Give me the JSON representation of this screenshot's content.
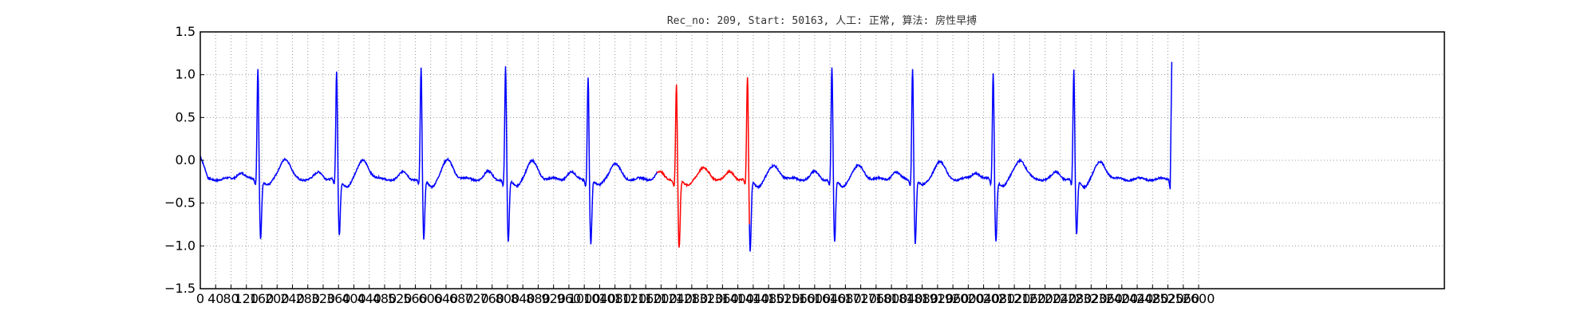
{
  "chart_data": {
    "type": "line",
    "title": "Rec_no: 209, Start: 50163, 人工: 正常, 算法: 房性早搏",
    "xlabel": "",
    "ylabel": "",
    "xlim": [
      0,
      3240
    ],
    "ylim": [
      -1.5,
      1.5
    ],
    "grid": true,
    "x_ticks": [
      0,
      40,
      80,
      120,
      160,
      200,
      240,
      280,
      320,
      360,
      400,
      440,
      480,
      520,
      560,
      600,
      640,
      680,
      720,
      760,
      800,
      840,
      880,
      920,
      960,
      1000,
      1040,
      1080,
      1120,
      1160,
      1200,
      1240,
      1280,
      1320,
      1360,
      1400,
      1440,
      1480,
      1520,
      1560,
      1600,
      1640,
      1680,
      1720,
      1760,
      1800,
      1840,
      1880,
      1920,
      1960,
      2000,
      2040,
      2080,
      2120,
      2160,
      2200,
      2240,
      2280,
      2320,
      2360,
      2400,
      2440,
      2480,
      2520,
      2560,
      2600
    ],
    "x_tick_labels": [
      "0",
      "40",
      "80",
      "120",
      "160",
      "200",
      "240",
      "280",
      "320",
      "360",
      "400",
      "440",
      "480",
      "520",
      "560",
      "600",
      "640",
      "680",
      "720",
      "760",
      "800",
      "840",
      "880",
      "920",
      "960",
      "1000",
      "1040",
      "1080",
      "1120",
      "1160",
      "1200",
      "1240",
      "1280",
      "1320",
      "1360",
      "1400",
      "1440",
      "1480",
      "1520",
      "1560",
      "1600",
      "1640",
      "1680",
      "1720",
      "1760",
      "1800",
      "1840",
      "1880",
      "1920",
      "1960",
      "2000",
      "2040",
      "2080",
      "2120",
      "2160",
      "2200",
      "2240",
      "2280",
      "2320",
      "2360",
      "2400",
      "2440",
      "2480",
      "2520",
      "2560",
      "2600"
    ],
    "y_ticks": [
      -1.5,
      -1.0,
      -0.5,
      0.0,
      0.5,
      1.0,
      1.5
    ],
    "y_tick_labels": [
      "−1.5",
      "−1.0",
      "−0.5",
      "0.0",
      "0.5",
      "1.0",
      "1.5"
    ],
    "colors": {
      "normal": "#0000ff",
      "highlight": "#ff0000",
      "grid": "#999999"
    },
    "highlight_range": [
      1190,
      1430
    ],
    "series": [
      {
        "color_key": "normal",
        "r_peak_x": [
          150,
          355,
          575,
          795,
          1010,
          1425,
          1645,
          1855,
          2065,
          2275
        ],
        "s_wave_x": [
          157,
          362,
          582,
          802,
          1017,
          1432,
          1652,
          1862,
          2072,
          2282
        ],
        "r_peak_y": [
          1.12,
          1.05,
          1.1,
          1.12,
          1.02,
          1.0,
          1.12,
          1.12,
          1.05,
          1.07
        ],
        "s_wave_y": [
          -0.9,
          -0.88,
          -0.93,
          -0.96,
          -0.98,
          -1.07,
          -0.96,
          -0.97,
          -0.94,
          -0.88
        ],
        "t_wave_peak_y": [
          0.07,
          0.05,
          0.05,
          0.03,
          0.0,
          -0.02,
          -0.02,
          0.03,
          0.06,
          0.03
        ],
        "baseline_y": -0.22,
        "end_x": 2530,
        "end_y": 1.15
      },
      {
        "color_key": "highlight",
        "r_peak_x": 1240,
        "r_peak_y": 0.93,
        "s_wave_x": 1247,
        "s_wave_y": -1.03,
        "t_wave_peak_y": -0.05
      }
    ]
  }
}
